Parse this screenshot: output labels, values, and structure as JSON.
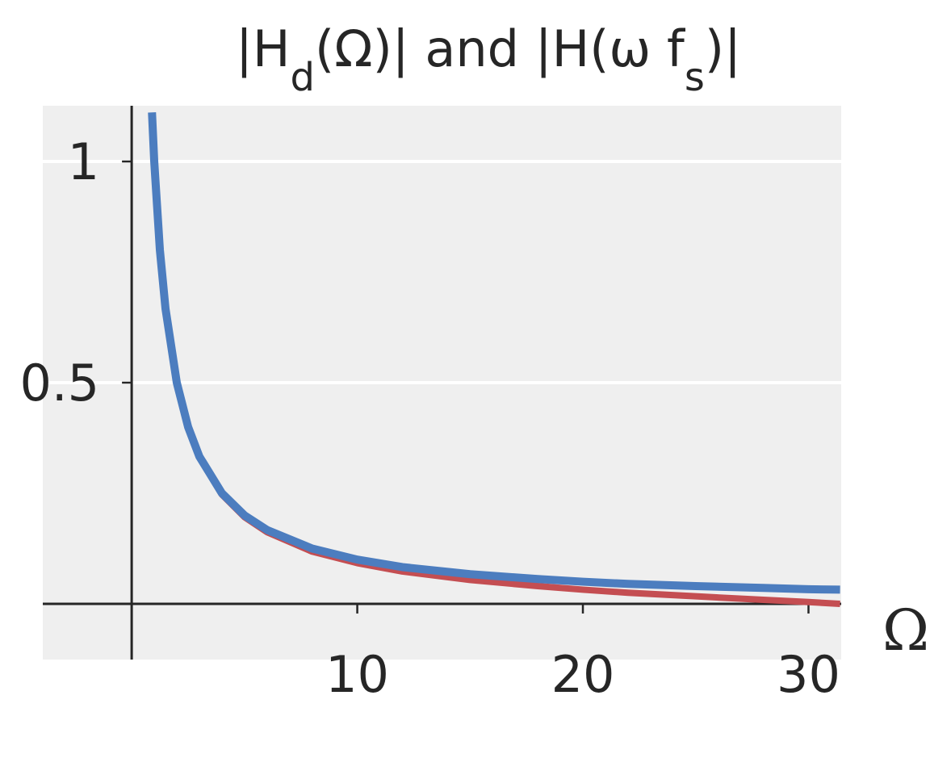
{
  "chart_data": {
    "type": "line",
    "title": [
      "|H",
      "d",
      "(Ω)| and |H(ω f",
      "s",
      ")|"
    ],
    "x_label": "Ω",
    "x": [
      0.9,
      1,
      1.25,
      1.5,
      2,
      2.5,
      3,
      4,
      5,
      6,
      8,
      10,
      12,
      15,
      18,
      20,
      22,
      25,
      28,
      30,
      31.4
    ],
    "series": [
      {
        "color": "#c44e52",
        "values": [
          1.11,
          0.999,
          0.799,
          0.665,
          0.498,
          0.398,
          0.331,
          0.247,
          0.196,
          0.162,
          0.118,
          0.092,
          0.073,
          0.054,
          0.04,
          0.032,
          0.025,
          0.017,
          0.009,
          0.004,
          0.0
        ]
      },
      {
        "color": "#4c7dbf",
        "values": [
          1.111,
          1,
          0.8,
          0.667,
          0.5,
          0.4,
          0.333,
          0.25,
          0.2,
          0.167,
          0.125,
          0.1,
          0.083,
          0.067,
          0.056,
          0.05,
          0.045,
          0.04,
          0.036,
          0.033,
          0.032
        ]
      }
    ],
    "xlim": [
      -3.94,
      31.45
    ],
    "ylim": [
      -0.126,
      1.126
    ],
    "xticks": [
      10,
      20,
      30
    ],
    "yticks": [
      0.5,
      1
    ],
    "grid": true,
    "background": "#efefef"
  }
}
